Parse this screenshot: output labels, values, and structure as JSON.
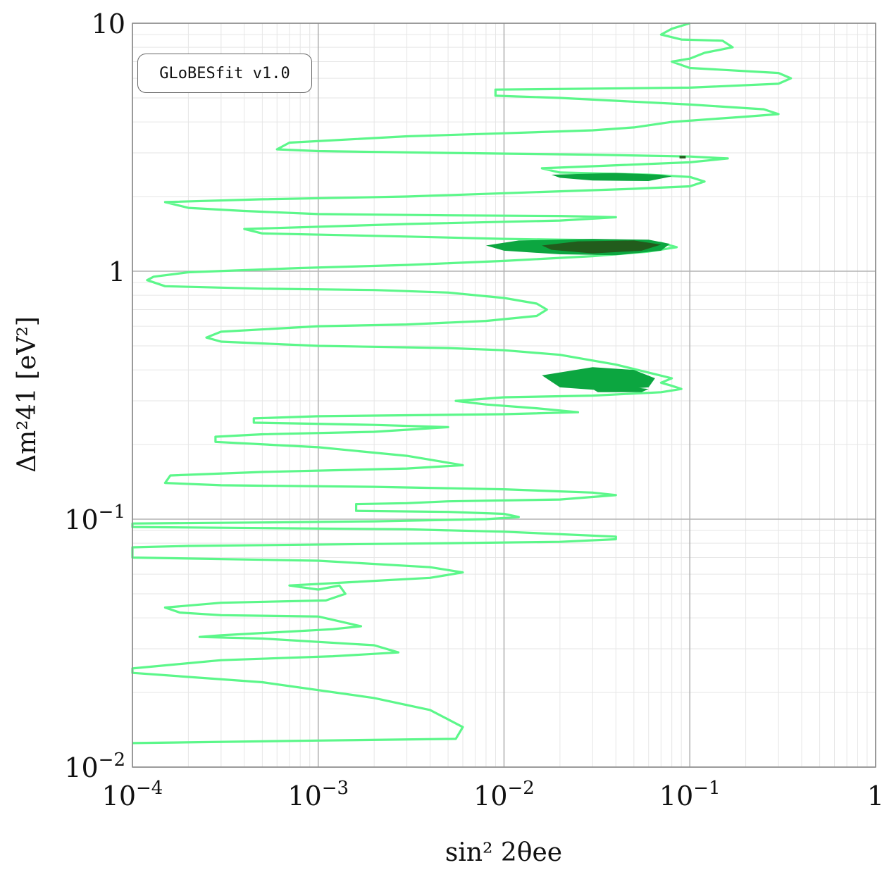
{
  "chart_data": {
    "type": "contour",
    "xlabel": "sin² 2θee",
    "ylabel": "Δm²41 [eV²]",
    "xscale": "log",
    "yscale": "log",
    "xlim": [
      0.0001,
      1
    ],
    "ylim": [
      0.01,
      10
    ],
    "x_ticks": [
      {
        "value": 0.0001,
        "base": "10",
        "exp": "−4"
      },
      {
        "value": 0.001,
        "base": "10",
        "exp": "−3"
      },
      {
        "value": 0.01,
        "base": "10",
        "exp": "−2"
      },
      {
        "value": 0.1,
        "base": "10",
        "exp": "−1"
      },
      {
        "value": 1,
        "base": "1",
        "exp": ""
      }
    ],
    "y_ticks": [
      {
        "value": 0.01,
        "base": "10",
        "exp": "−2"
      },
      {
        "value": 0.1,
        "base": "10",
        "exp": "−1"
      },
      {
        "value": 1,
        "base": "1",
        "exp": ""
      },
      {
        "value": 10,
        "base": "10",
        "exp": ""
      }
    ],
    "legend_text": "GLoBESfit v1.0",
    "legend_position": "top-left",
    "grid": true,
    "series": [
      {
        "style": "outline",
        "color": "#5cf78a",
        "points": [
          [
            0.1,
            10
          ],
          [
            0.08,
            9.5
          ],
          [
            0.07,
            9.0
          ],
          [
            0.09,
            8.6
          ],
          [
            0.15,
            8.5
          ],
          [
            0.17,
            8.0
          ],
          [
            0.12,
            7.6
          ],
          [
            0.1,
            7.2
          ],
          [
            0.08,
            7.0
          ],
          [
            0.1,
            6.6
          ],
          [
            0.3,
            6.3
          ],
          [
            0.35,
            6.0
          ],
          [
            0.3,
            5.7
          ],
          [
            0.1,
            5.5
          ],
          [
            0.009,
            5.4
          ],
          [
            0.009,
            5.1
          ],
          [
            0.02,
            5.0
          ],
          [
            0.1,
            4.7
          ],
          [
            0.25,
            4.5
          ],
          [
            0.3,
            4.3
          ],
          [
            0.2,
            4.2
          ],
          [
            0.08,
            4.0
          ],
          [
            0.05,
            3.8
          ],
          [
            0.03,
            3.7
          ],
          [
            0.01,
            3.6
          ],
          [
            0.003,
            3.5
          ],
          [
            0.0007,
            3.3
          ],
          [
            0.0006,
            3.1
          ],
          [
            0.001,
            3.05
          ],
          [
            0.005,
            3.0
          ],
          [
            0.03,
            2.95
          ],
          [
            0.1,
            2.9
          ],
          [
            0.16,
            2.85
          ],
          [
            0.1,
            2.75
          ],
          [
            0.03,
            2.65
          ],
          [
            0.016,
            2.6
          ],
          [
            0.02,
            2.5
          ],
          [
            0.06,
            2.45
          ],
          [
            0.1,
            2.4
          ],
          [
            0.12,
            2.3
          ],
          [
            0.1,
            2.2
          ],
          [
            0.05,
            2.15
          ],
          [
            0.02,
            2.1
          ],
          [
            0.003,
            2.0
          ],
          [
            0.0005,
            1.95
          ],
          [
            0.00015,
            1.9
          ],
          [
            0.0002,
            1.8
          ],
          [
            0.0004,
            1.75
          ],
          [
            0.001,
            1.7
          ],
          [
            0.005,
            1.68
          ],
          [
            0.02,
            1.67
          ],
          [
            0.04,
            1.65
          ],
          [
            0.02,
            1.6
          ],
          [
            0.003,
            1.55
          ],
          [
            0.0004,
            1.48
          ],
          [
            0.0005,
            1.42
          ],
          [
            0.003,
            1.38
          ],
          [
            0.01,
            1.35
          ],
          [
            0.04,
            1.33
          ],
          [
            0.07,
            1.3
          ],
          [
            0.085,
            1.25
          ],
          [
            0.06,
            1.2
          ],
          [
            0.03,
            1.15
          ],
          [
            0.01,
            1.1
          ],
          [
            0.003,
            1.06
          ],
          [
            0.0008,
            1.03
          ],
          [
            0.0002,
            0.99
          ],
          [
            0.00013,
            0.95
          ],
          [
            0.00012,
            0.92
          ],
          [
            0.00015,
            0.87
          ],
          [
            0.0005,
            0.85
          ],
          [
            0.002,
            0.84
          ],
          [
            0.005,
            0.82
          ],
          [
            0.01,
            0.78
          ],
          [
            0.015,
            0.74
          ],
          [
            0.017,
            0.7
          ],
          [
            0.015,
            0.66
          ],
          [
            0.008,
            0.63
          ],
          [
            0.003,
            0.61
          ],
          [
            0.001,
            0.6
          ],
          [
            0.0003,
            0.57
          ],
          [
            0.00025,
            0.54
          ],
          [
            0.0003,
            0.52
          ],
          [
            0.001,
            0.5
          ],
          [
            0.005,
            0.49
          ],
          [
            0.01,
            0.48
          ],
          [
            0.02,
            0.46
          ],
          [
            0.04,
            0.42
          ],
          [
            0.06,
            0.39
          ],
          [
            0.08,
            0.37
          ],
          [
            0.07,
            0.355
          ],
          [
            0.08,
            0.345
          ],
          [
            0.09,
            0.335
          ],
          [
            0.07,
            0.325
          ],
          [
            0.03,
            0.315
          ],
          [
            0.01,
            0.31
          ],
          [
            0.0055,
            0.3
          ],
          [
            0.008,
            0.29
          ],
          [
            0.015,
            0.28
          ],
          [
            0.025,
            0.27
          ],
          [
            0.01,
            0.265
          ],
          [
            0.001,
            0.26
          ],
          [
            0.00045,
            0.255
          ],
          [
            0.00045,
            0.245
          ],
          [
            0.002,
            0.24
          ],
          [
            0.005,
            0.235
          ],
          [
            0.002,
            0.225
          ],
          [
            0.0005,
            0.22
          ],
          [
            0.00028,
            0.215
          ],
          [
            0.00028,
            0.205
          ],
          [
            0.001,
            0.195
          ],
          [
            0.003,
            0.18
          ],
          [
            0.006,
            0.165
          ],
          [
            0.003,
            0.16
          ],
          [
            0.0005,
            0.155
          ],
          [
            0.00016,
            0.15
          ],
          [
            0.00015,
            0.14
          ],
          [
            0.0003,
            0.137
          ],
          [
            0.002,
            0.135
          ],
          [
            0.01,
            0.132
          ],
          [
            0.03,
            0.128
          ],
          [
            0.04,
            0.125
          ],
          [
            0.02,
            0.12
          ],
          [
            0.005,
            0.118
          ],
          [
            0.003,
            0.116
          ],
          [
            0.0016,
            0.115
          ],
          [
            0.0016,
            0.108
          ],
          [
            0.005,
            0.107
          ],
          [
            0.01,
            0.105
          ],
          [
            0.012,
            0.102
          ],
          [
            0.008,
            0.1
          ],
          [
            0.002,
            0.098
          ],
          [
            0.0005,
            0.097
          ],
          [
            0.0001,
            0.096
          ],
          [
            0.0001,
            0.093
          ],
          [
            0.0005,
            0.092
          ],
          [
            0.003,
            0.091
          ],
          [
            0.01,
            0.089
          ],
          [
            0.04,
            0.085
          ],
          [
            0.04,
            0.083
          ],
          [
            0.02,
            0.081
          ],
          [
            0.005,
            0.08
          ],
          [
            0.0002,
            0.078
          ],
          [
            0.0001,
            0.077
          ],
          [
            0.0001,
            0.07
          ],
          [
            0.001,
            0.068
          ],
          [
            0.004,
            0.064
          ],
          [
            0.006,
            0.061
          ],
          [
            0.004,
            0.058
          ],
          [
            0.0007,
            0.054
          ],
          [
            0.001,
            0.052
          ],
          [
            0.0013,
            0.054
          ],
          [
            0.0014,
            0.05
          ],
          [
            0.0011,
            0.047
          ],
          [
            0.0003,
            0.046
          ],
          [
            0.00015,
            0.044
          ],
          [
            0.00018,
            0.042
          ],
          [
            0.0003,
            0.041
          ],
          [
            0.001,
            0.0405
          ],
          [
            0.0017,
            0.037
          ],
          [
            0.0012,
            0.036
          ],
          [
            0.0003,
            0.034
          ],
          [
            0.00023,
            0.0335
          ],
          [
            0.0005,
            0.033
          ],
          [
            0.002,
            0.031
          ],
          [
            0.0027,
            0.029
          ],
          [
            0.0012,
            0.028
          ],
          [
            0.0003,
            0.027
          ],
          [
            0.0001,
            0.025
          ],
          [
            0.0001,
            0.024
          ],
          [
            0.0005,
            0.022
          ],
          [
            0.002,
            0.019
          ],
          [
            0.004,
            0.017
          ],
          [
            0.006,
            0.0145
          ],
          [
            0.0055,
            0.013
          ],
          [
            0.001,
            0.0128
          ],
          [
            0.0001,
            0.0125
          ]
        ]
      },
      {
        "style": "filled",
        "color": "#0ca640",
        "points": [
          [
            0.008,
            1.27
          ],
          [
            0.012,
            1.33
          ],
          [
            0.03,
            1.35
          ],
          [
            0.06,
            1.34
          ],
          [
            0.078,
            1.29
          ],
          [
            0.07,
            1.21
          ],
          [
            0.04,
            1.16
          ],
          [
            0.02,
            1.17
          ],
          [
            0.01,
            1.21
          ],
          [
            0.008,
            1.27
          ]
        ]
      },
      {
        "style": "filled",
        "color": "#225c1c",
        "points": [
          [
            0.016,
            1.27
          ],
          [
            0.025,
            1.32
          ],
          [
            0.05,
            1.33
          ],
          [
            0.07,
            1.28
          ],
          [
            0.055,
            1.21
          ],
          [
            0.03,
            1.18
          ],
          [
            0.018,
            1.22
          ],
          [
            0.016,
            1.27
          ]
        ]
      },
      {
        "style": "filled",
        "color": "#0ca640",
        "points": [
          [
            0.018,
            2.45
          ],
          [
            0.04,
            2.49
          ],
          [
            0.07,
            2.45
          ],
          [
            0.08,
            2.41
          ],
          [
            0.06,
            2.31
          ],
          [
            0.03,
            2.32
          ],
          [
            0.02,
            2.38
          ],
          [
            0.018,
            2.45
          ]
        ]
      },
      {
        "style": "filled",
        "color": "#225c1c",
        "points": [
          [
            0.088,
            2.92
          ],
          [
            0.095,
            2.92
          ],
          [
            0.095,
            2.85
          ],
          [
            0.088,
            2.85
          ],
          [
            0.088,
            2.92
          ]
        ]
      },
      {
        "style": "filled",
        "color": "#0ca640",
        "points": [
          [
            0.016,
            0.38
          ],
          [
            0.03,
            0.41
          ],
          [
            0.05,
            0.4
          ],
          [
            0.065,
            0.37
          ],
          [
            0.06,
            0.34
          ],
          [
            0.035,
            0.33
          ],
          [
            0.02,
            0.34
          ],
          [
            0.016,
            0.38
          ]
        ]
      },
      {
        "style": "filled",
        "color": "#0ca640",
        "points": [
          [
            0.03,
            0.335
          ],
          [
            0.05,
            0.34
          ],
          [
            0.06,
            0.335
          ],
          [
            0.055,
            0.325
          ],
          [
            0.032,
            0.325
          ],
          [
            0.03,
            0.335
          ]
        ]
      }
    ]
  }
}
